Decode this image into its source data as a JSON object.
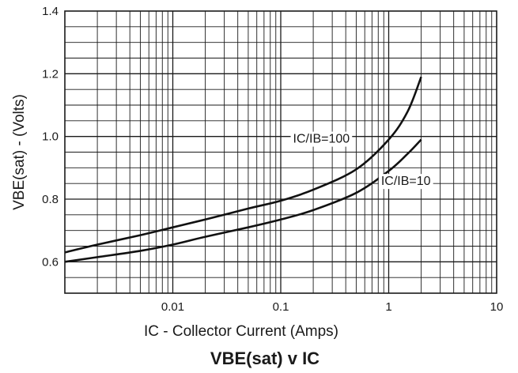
{
  "chart_data": {
    "type": "line",
    "title": "VBE(sat) v IC",
    "xlabel": "IC - Collector Current (Amps)",
    "ylabel": "VBE(sat) - (Volts)",
    "xscale": "log",
    "xlim": [
      0.001,
      10
    ],
    "ylim": [
      0.5,
      1.4
    ],
    "grid": true,
    "x_tick_labels": [
      "0.01",
      "0.1",
      "1",
      "10"
    ],
    "y_tick_labels": [
      "0.6",
      "0.8",
      "1.0",
      "1.2",
      "1.4"
    ],
    "series": [
      {
        "name": "IC/IB=100",
        "x": [
          0.001,
          0.002,
          0.005,
          0.01,
          0.02,
          0.05,
          0.1,
          0.2,
          0.5,
          1,
          1.5,
          2
        ],
        "y": [
          0.63,
          0.655,
          0.685,
          0.71,
          0.735,
          0.77,
          0.795,
          0.83,
          0.895,
          0.99,
          1.08,
          1.19
        ]
      },
      {
        "name": "IC/IB=10",
        "x": [
          0.001,
          0.002,
          0.005,
          0.01,
          0.02,
          0.05,
          0.1,
          0.2,
          0.5,
          1,
          1.5,
          2
        ],
        "y": [
          0.6,
          0.615,
          0.635,
          0.655,
          0.68,
          0.71,
          0.735,
          0.765,
          0.82,
          0.89,
          0.945,
          0.99
        ]
      }
    ]
  }
}
